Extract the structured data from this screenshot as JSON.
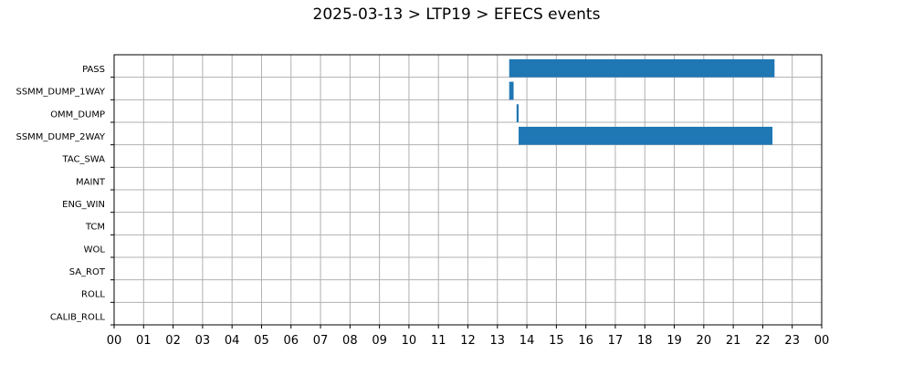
{
  "chart_data": {
    "type": "bar",
    "orientation": "horizontal-timeline",
    "title": "2025-03-13 > LTP19 > EFECS events",
    "categories": [
      "PASS",
      "SSMM_DUMP_1WAY",
      "OMM_DUMP",
      "SSMM_DUMP_2WAY",
      "TAC_SWA",
      "MAINT",
      "ENG_WIN",
      "TCM",
      "WOL",
      "SA_ROT",
      "ROLL",
      "CALIB_ROLL"
    ],
    "x_tick_labels": [
      "00",
      "01",
      "02",
      "03",
      "04",
      "05",
      "06",
      "07",
      "08",
      "09",
      "10",
      "11",
      "12",
      "13",
      "14",
      "15",
      "16",
      "17",
      "18",
      "19",
      "20",
      "21",
      "22",
      "23",
      "00"
    ],
    "xlim": [
      0,
      24
    ],
    "xunit": "hour of day",
    "grid": true,
    "series": [
      {
        "color": "#1f77b4",
        "events": [
          {
            "category": "PASS",
            "start": 13.4,
            "end": 22.4
          },
          {
            "category": "SSMM_DUMP_1WAY",
            "start": 13.4,
            "end": 13.55
          },
          {
            "category": "OMM_DUMP",
            "start": 13.65,
            "end": 13.72
          },
          {
            "category": "SSMM_DUMP_2WAY",
            "start": 13.72,
            "end": 22.33
          }
        ]
      }
    ]
  }
}
